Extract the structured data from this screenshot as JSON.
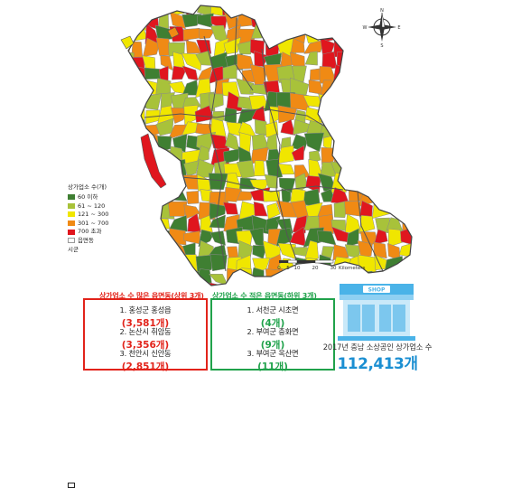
{
  "legend": {
    "title": "상가업소 수(개)",
    "items": [
      {
        "label": "60 이하",
        "color": "#3f7f32"
      },
      {
        "label": "61 ~ 120",
        "color": "#a8c23a"
      },
      {
        "label": "121 ~ 300",
        "color": "#f0e600"
      },
      {
        "label": "301 ~ 700",
        "color": "#f08a14"
      },
      {
        "label": "700 초과",
        "color": "#e0161e"
      }
    ],
    "boundary_town": "읍면동",
    "boundary_city": "시군"
  },
  "scale": {
    "ticks": [
      "0",
      "5",
      "10",
      "20",
      "30"
    ],
    "unit": "Kilometers"
  },
  "compass": {
    "n": "N",
    "s": "S",
    "e": "E",
    "w": "W"
  },
  "top_box": {
    "title": "상가업소 수 많은 읍면동(상위 3개)",
    "items": [
      {
        "name": "1. 홍성군 홍성읍",
        "value": "(3,581개)"
      },
      {
        "name": "2. 논산시 취암동",
        "value": "(3,356개)"
      },
      {
        "name": "3. 천안시 신안동",
        "value": "(2,851개)"
      }
    ]
  },
  "bottom_box": {
    "title": "상가업소 수 적은 읍면동(하위 3개)",
    "items": [
      {
        "name": "1. 서천군 시초면",
        "value": "(4개)"
      },
      {
        "name": "2. 부여군 충화면",
        "value": "(9개)"
      },
      {
        "name": "3. 부여군 옥산면",
        "value": "(11개)"
      }
    ]
  },
  "shop_sign": "SHOP",
  "summary": {
    "caption": "2017년 충남 소상공인 상가업소 수",
    "total": "112,413개"
  }
}
